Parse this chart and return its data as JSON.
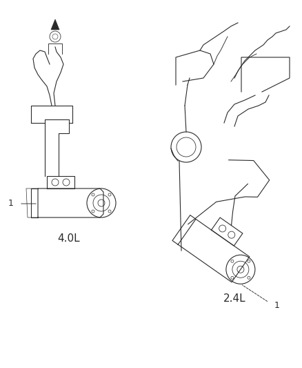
{
  "title": "",
  "background_color": "#ffffff",
  "label_4L": "4.0L",
  "label_24L": "2.4L",
  "part_number_label": "1",
  "fig_width": 4.38,
  "fig_height": 5.33,
  "dpi": 100,
  "line_color": "#2a2a2a",
  "line_width": 0.8,
  "font_size_label": 11,
  "font_size_part": 9
}
